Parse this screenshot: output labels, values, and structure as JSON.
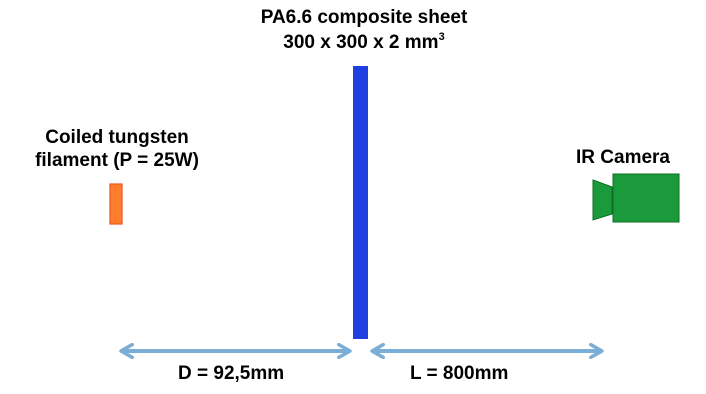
{
  "sheet": {
    "title": "PA6.6 composite sheet",
    "dimensions": "300 x 300 x 2 mm",
    "dimensions_exponent": "3",
    "color": "#1f3fe0"
  },
  "filament": {
    "label_line1": "Coiled tungsten",
    "label_line2": "filament (P = 25W)",
    "color": "#ff7d2e"
  },
  "camera": {
    "label": "IR Camera",
    "color": "#1a9a3a"
  },
  "distances": {
    "source_to_sheet": "D = 92,5mm",
    "sheet_to_camera": "L = 800mm",
    "arrow_color": "#7aaed6"
  }
}
